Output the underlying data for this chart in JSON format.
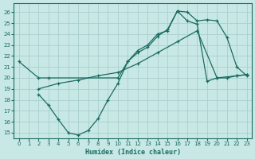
{
  "bg_color": "#c8e8e5",
  "grid_color": "#a8d0cc",
  "line_color": "#1a6b60",
  "xlabel": "Humidex (Indice chaleur)",
  "ylim": [
    14.5,
    26.8
  ],
  "xlim": [
    -0.5,
    23.5
  ],
  "yticks": [
    15,
    16,
    17,
    18,
    19,
    20,
    21,
    22,
    23,
    24,
    25,
    26
  ],
  "xticks": [
    0,
    1,
    2,
    3,
    4,
    5,
    6,
    7,
    8,
    9,
    10,
    11,
    12,
    13,
    14,
    15,
    16,
    17,
    18,
    19,
    20,
    21,
    22,
    23
  ],
  "line1_x": [
    0,
    2,
    3,
    10,
    11,
    12,
    13,
    14,
    15,
    16,
    17,
    18,
    19,
    20,
    21,
    22,
    23
  ],
  "line1_y": [
    21.5,
    20.0,
    20.0,
    20.0,
    21.5,
    22.5,
    23.0,
    24.0,
    24.3,
    26.1,
    26.0,
    25.2,
    25.3,
    25.2,
    23.7,
    21.0,
    20.2
  ],
  "line2_x": [
    2,
    4,
    6,
    8,
    10,
    12,
    14,
    16,
    18,
    20,
    22,
    23
  ],
  "line2_y": [
    19.0,
    19.5,
    19.8,
    20.2,
    20.5,
    21.3,
    22.3,
    23.3,
    24.3,
    20.0,
    20.2,
    20.3
  ],
  "line3_x": [
    2,
    3,
    4,
    5,
    6,
    7,
    8,
    9,
    10,
    11,
    12,
    13,
    14,
    15,
    16,
    17,
    18,
    19,
    20,
    21,
    22,
    23
  ],
  "line3_y": [
    18.5,
    17.5,
    16.2,
    15.0,
    14.8,
    15.2,
    16.3,
    18.0,
    19.5,
    21.5,
    22.3,
    22.8,
    23.8,
    24.4,
    26.1,
    25.2,
    24.9,
    19.7,
    20.0,
    20.0,
    20.2,
    20.3
  ]
}
